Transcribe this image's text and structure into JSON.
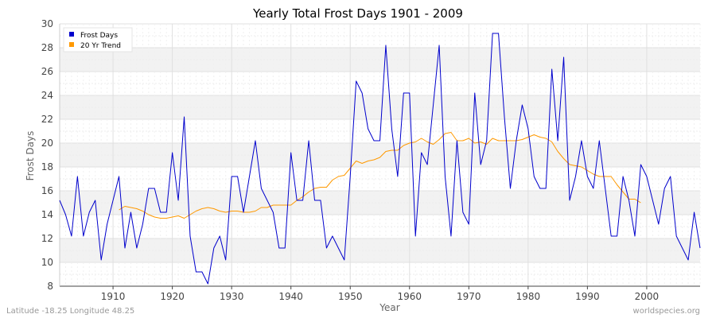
{
  "chart_data": {
    "type": "line",
    "title": "Yearly Total Frost Days 1901 - 2009",
    "xlabel": "Year",
    "ylabel": "Frost Days",
    "xlim": [
      1901,
      2009
    ],
    "ylim": [
      8,
      30
    ],
    "xticks": [
      1910,
      1920,
      1930,
      1940,
      1950,
      1960,
      1970,
      1980,
      1990,
      2000
    ],
    "yticks": [
      8,
      10,
      12,
      14,
      16,
      18,
      20,
      22,
      24,
      26,
      28,
      30
    ],
    "grid": true,
    "legend": "top-left",
    "series": [
      {
        "name": "Frost Days",
        "color": "#0000cc",
        "x": [
          1901,
          1902,
          1903,
          1904,
          1905,
          1906,
          1907,
          1908,
          1909,
          1910,
          1911,
          1912,
          1913,
          1914,
          1915,
          1916,
          1917,
          1918,
          1919,
          1920,
          1921,
          1922,
          1923,
          1924,
          1925,
          1926,
          1927,
          1928,
          1929,
          1930,
          1931,
          1932,
          1933,
          1934,
          1935,
          1936,
          1937,
          1938,
          1939,
          1940,
          1941,
          1942,
          1943,
          1944,
          1945,
          1946,
          1947,
          1948,
          1949,
          1950,
          1951,
          1952,
          1953,
          1954,
          1955,
          1956,
          1957,
          1958,
          1959,
          1960,
          1961,
          1962,
          1963,
          1964,
          1965,
          1966,
          1967,
          1968,
          1969,
          1970,
          1971,
          1972,
          1973,
          1974,
          1975,
          1976,
          1977,
          1978,
          1979,
          1980,
          1981,
          1982,
          1983,
          1984,
          1985,
          1986,
          1987,
          1988,
          1989,
          1990,
          1991,
          1992,
          1993,
          1994,
          1995,
          1996,
          1997,
          1998,
          1999,
          2000,
          2001,
          2002,
          2003,
          2004,
          2005,
          2006,
          2007,
          2008,
          2009
        ],
        "values": [
          15.2,
          14.0,
          12.2,
          17.2,
          12.2,
          14.2,
          15.2,
          10.2,
          13.2,
          15.2,
          17.2,
          11.2,
          14.2,
          11.2,
          13.2,
          16.2,
          16.2,
          14.2,
          14.2,
          19.2,
          15.2,
          22.2,
          12.2,
          9.2,
          9.2,
          8.2,
          11.2,
          12.2,
          10.2,
          17.2,
          17.2,
          14.2,
          17.2,
          20.2,
          16.2,
          15.2,
          14.2,
          11.2,
          11.2,
          19.2,
          15.2,
          15.2,
          20.2,
          15.2,
          15.2,
          11.2,
          12.2,
          11.2,
          10.2,
          17.2,
          25.2,
          24.2,
          21.2,
          20.2,
          20.2,
          28.2,
          21.2,
          17.2,
          24.2,
          24.2,
          12.2,
          19.2,
          18.2,
          23.2,
          28.2,
          17.2,
          12.2,
          20.2,
          14.2,
          13.2,
          24.2,
          18.2,
          20.2,
          29.2,
          29.2,
          22.2,
          16.2,
          20.2,
          23.2,
          21.2,
          17.2,
          16.2,
          16.2,
          26.2,
          20.2,
          27.2,
          15.2,
          17.2,
          20.2,
          17.2,
          16.2,
          20.2,
          16.2,
          12.2,
          12.2,
          17.2,
          15.2,
          12.2,
          18.2,
          17.2,
          15.2,
          13.2,
          16.2,
          17.2,
          12.2,
          11.2,
          10.2,
          14.2,
          11.2
        ]
      },
      {
        "name": "20 Yr Trend",
        "color": "#ff9900",
        "x": [
          1911,
          1912,
          1913,
          1914,
          1915,
          1916,
          1917,
          1918,
          1919,
          1920,
          1921,
          1922,
          1923,
          1924,
          1925,
          1926,
          1927,
          1928,
          1929,
          1930,
          1931,
          1932,
          1933,
          1934,
          1935,
          1936,
          1937,
          1938,
          1939,
          1940,
          1941,
          1942,
          1943,
          1944,
          1945,
          1946,
          1947,
          1948,
          1949,
          1950,
          1951,
          1952,
          1953,
          1954,
          1955,
          1956,
          1957,
          1958,
          1959,
          1960,
          1961,
          1962,
          1963,
          1964,
          1965,
          1966,
          1967,
          1968,
          1969,
          1970,
          1971,
          1972,
          1973,
          1974,
          1975,
          1976,
          1977,
          1978,
          1979,
          1980,
          1981,
          1982,
          1983,
          1984,
          1985,
          1986,
          1987,
          1988,
          1989,
          1990,
          1991,
          1992,
          1993,
          1994,
          1995,
          1996,
          1997,
          1998,
          1999
        ],
        "values": [
          14.4,
          14.7,
          14.6,
          14.5,
          14.3,
          14.0,
          13.8,
          13.7,
          13.7,
          13.8,
          13.9,
          13.7,
          14.0,
          14.3,
          14.5,
          14.6,
          14.5,
          14.3,
          14.2,
          14.3,
          14.3,
          14.2,
          14.2,
          14.3,
          14.6,
          14.6,
          14.8,
          14.8,
          14.8,
          14.8,
          15.2,
          15.5,
          15.9,
          16.2,
          16.3,
          16.3,
          16.9,
          17.2,
          17.3,
          17.9,
          18.5,
          18.3,
          18.5,
          18.6,
          18.8,
          19.3,
          19.4,
          19.4,
          19.8,
          20.0,
          20.1,
          20.4,
          20.1,
          19.9,
          20.3,
          20.8,
          20.9,
          20.2,
          20.2,
          20.4,
          20.0,
          20.1,
          19.9,
          20.4,
          20.2,
          20.2,
          20.2,
          20.2,
          20.3,
          20.5,
          20.7,
          20.5,
          20.4,
          20.1,
          19.3,
          18.7,
          18.2,
          18.1,
          18.0,
          17.7,
          17.4,
          17.2,
          17.2,
          17.2,
          16.5,
          15.9,
          15.3,
          15.3,
          15.0
        ]
      }
    ]
  },
  "footer": {
    "location": "Latitude -18.25 Longitude 48.25",
    "source": "worldspecies.org"
  }
}
